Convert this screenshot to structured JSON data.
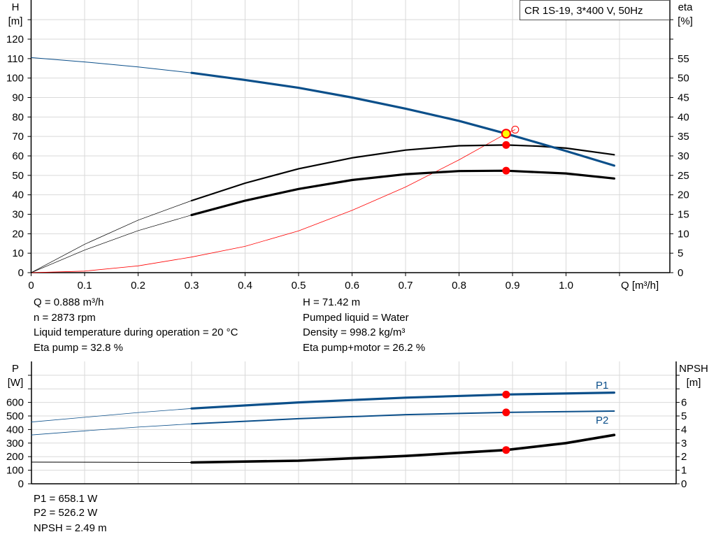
{
  "chart_data": [
    {
      "type": "line",
      "legend_title": "CR 1S-19, 3*400 V, 50Hz",
      "xlabel": "Q [m³/h]",
      "ylabel_left": [
        "H",
        "[m]"
      ],
      "ylabel_right": [
        "eta",
        "[%]"
      ],
      "x_ticks": [
        "0",
        "0.1",
        "0.2",
        "0.3",
        "0.4",
        "0.5",
        "0.6",
        "0.7",
        "0.8",
        "0.9",
        "1.0"
      ],
      "y_left_ticks": [
        "0",
        "10",
        "20",
        "30",
        "40",
        "50",
        "60",
        "70",
        "80",
        "90",
        "100",
        "110",
        "120"
      ],
      "y_right_ticks": [
        "0",
        "5",
        "10",
        "15",
        "20",
        "25",
        "30",
        "35",
        "40",
        "45",
        "50",
        "55"
      ],
      "xlim": [
        0,
        1.2
      ],
      "ylim_left": [
        0,
        140
      ],
      "ylim_right": [
        0,
        70
      ],
      "grid": true,
      "colors": {
        "head": "#0b4f8a",
        "eta": "#000000",
        "system": "#ff0000",
        "duty_point": "#ffff00",
        "marker": "#ff0000",
        "grid": "#d9d9d9"
      },
      "series": [
        {
          "key": "head",
          "axis": "left",
          "thin_until": 0.295,
          "x": [
            0,
            0.1,
            0.2,
            0.3,
            0.4,
            0.5,
            0.6,
            0.7,
            0.8,
            0.888,
            0.9,
            1.0,
            1.09
          ],
          "y": [
            110.5,
            108.3,
            105.7,
            102.7,
            99,
            95,
            90,
            84.3,
            78,
            71.42,
            70.5,
            62.5,
            55
          ]
        },
        {
          "key": "eta-pump",
          "axis": "right",
          "thin_until": 0.295,
          "x": [
            0,
            0.1,
            0.2,
            0.3,
            0.4,
            0.5,
            0.6,
            0.7,
            0.8,
            0.888,
            0.95,
            1.0,
            1.09
          ],
          "y": [
            0,
            7.3,
            13.5,
            18.5,
            23,
            26.7,
            29.5,
            31.5,
            32.6,
            32.8,
            32.5,
            32,
            30.3
          ]
        },
        {
          "key": "eta-pump-motor",
          "axis": "right",
          "thin_until": 0.295,
          "x": [
            0,
            0.1,
            0.2,
            0.3,
            0.4,
            0.5,
            0.6,
            0.7,
            0.8,
            0.888,
            1.0,
            1.09
          ],
          "y": [
            0,
            5.8,
            10.8,
            14.8,
            18.5,
            21.5,
            23.8,
            25.3,
            26.1,
            26.2,
            25.5,
            24.2
          ]
        },
        {
          "key": "system-curve",
          "axis": "left",
          "x": [
            0,
            0.1,
            0.2,
            0.3,
            0.4,
            0.5,
            0.6,
            0.7,
            0.8,
            0.888,
            0.905
          ],
          "y": [
            0,
            0.8,
            3.5,
            8,
            13.5,
            21.5,
            32,
            44,
            58,
            71.42,
            73.5
          ]
        }
      ],
      "duty_point": {
        "q": 0.888,
        "h": 71.42,
        "eta_pump": 32.8,
        "eta_pump_motor": 26.2
      }
    },
    {
      "type": "line",
      "ylabel_left": [
        "P",
        "[W]"
      ],
      "ylabel_right": [
        "NPSH",
        "[m]"
      ],
      "y_left_ticks": [
        "0",
        "100",
        "200",
        "300",
        "400",
        "500",
        "600"
      ],
      "y_right_ticks": [
        "0",
        "1",
        "2",
        "3",
        "4",
        "5",
        "6"
      ],
      "ylim_left": [
        0,
        900
      ],
      "ylim_right": [
        0,
        9
      ],
      "grid": true,
      "series": [
        {
          "name": "P1",
          "key": "p1",
          "axis": "left",
          "thin_until": 0.295,
          "x": [
            0,
            0.1,
            0.2,
            0.3,
            0.5,
            0.7,
            0.888,
            1.09
          ],
          "y": [
            455,
            490,
            525,
            555,
            600,
            635,
            658.1,
            672
          ]
        },
        {
          "name": "P2",
          "key": "p2",
          "axis": "left",
          "thin_until": 0.295,
          "x": [
            0,
            0.1,
            0.2,
            0.3,
            0.5,
            0.7,
            0.888,
            1.09
          ],
          "y": [
            360,
            390,
            418,
            442,
            480,
            510,
            526.2,
            536
          ]
        },
        {
          "key": "npsh",
          "axis": "right",
          "thin_until": 0.295,
          "x": [
            0,
            0.3,
            0.5,
            0.7,
            0.888,
            1.0,
            1.09
          ],
          "y": [
            1.6,
            1.57,
            1.7,
            2.05,
            2.49,
            3.0,
            3.6
          ]
        }
      ],
      "duty_point": {
        "q": 0.888,
        "p1": 658.1,
        "p2": 526.2,
        "npsh": 2.49
      }
    }
  ],
  "info_top": {
    "left": [
      "Q = 0.888 m³/h",
      "n = 2873 rpm",
      "Liquid temperature during operation = 20 °C",
      "Eta pump = 32.8 %"
    ],
    "right": [
      "H = 71.42 m",
      "Pumped liquid = Water",
      "Density = 998.2 kg/m³",
      "Eta pump+motor = 26.2 %"
    ]
  },
  "info_bottom": [
    "P1 = 658.1 W",
    "P2 = 526.2 W",
    "NPSH = 2.49 m"
  ]
}
